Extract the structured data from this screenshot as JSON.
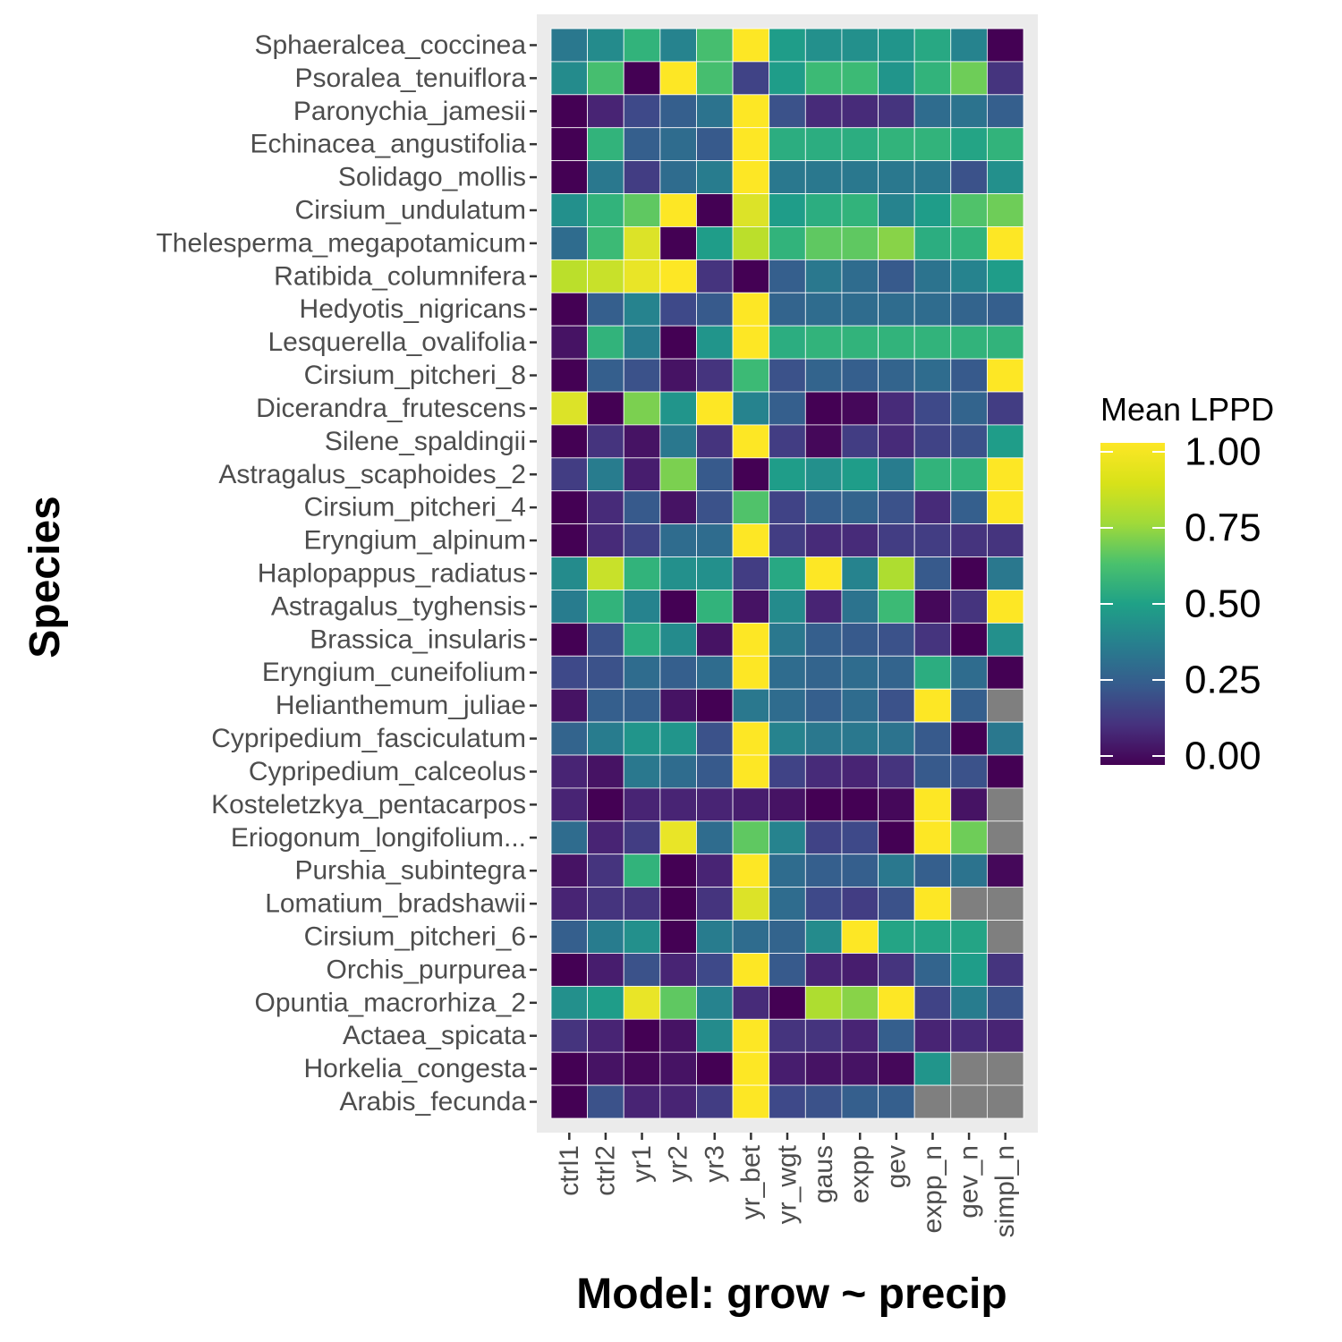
{
  "chart_data": {
    "type": "heatmap",
    "xlabel": "Model: grow ~ precip",
    "ylabel": "Species",
    "x_categories": [
      "ctrl1",
      "ctrl2",
      "yr1",
      "yr2",
      "yr3",
      "yr_bet",
      "yr_wgt",
      "gaus",
      "expp",
      "gev",
      "expp_n",
      "gev_n",
      "simpl_n"
    ],
    "y_categories": [
      "Sphaeralcea_coccinea",
      "Psoralea_tenuiflora",
      "Paronychia_jamesii",
      "Echinacea_angustifolia",
      "Solidago_mollis",
      "Cirsium_undulatum",
      "Thelesperma_megapotamicum",
      "Ratibida_columnifera",
      "Hedyotis_nigricans",
      "Lesquerella_ovalifolia",
      "Cirsium_pitcheri_8",
      "Dicerandra_frutescens",
      "Silene_spaldingii",
      "Astragalus_scaphoides_2",
      "Cirsium_pitcheri_4",
      "Eryngium_alpinum",
      "Haplopappus_radiatus",
      "Astragalus_tyghensis",
      "Brassica_insularis",
      "Eryngium_cuneifolium",
      "Helianthemum_juliae",
      "Cypripedium_fasciculatum",
      "Cypripedium_calceolus",
      "Kosteletzkya_pentacarpos",
      "Eriogonum_longifolium...",
      "Purshia_subintegra",
      "Lomatium_bradshawii",
      "Cirsium_pitcheri_6",
      "Orchis_purpurea",
      "Opuntia_macrorhiza_2",
      "Actaea_spicata",
      "Horkelia_congesta",
      "Arabis_fecunda"
    ],
    "values": [
      [
        0.4,
        0.48,
        0.65,
        0.45,
        0.7,
        1.0,
        0.55,
        0.5,
        0.5,
        0.52,
        0.6,
        0.45,
        0.0
      ],
      [
        0.48,
        0.7,
        0.0,
        1.0,
        0.7,
        0.2,
        0.55,
        0.68,
        0.68,
        0.52,
        0.65,
        0.78,
        0.15
      ],
      [
        0.0,
        0.1,
        0.22,
        0.3,
        0.38,
        1.0,
        0.25,
        0.12,
        0.12,
        0.15,
        0.35,
        0.38,
        0.3
      ],
      [
        0.0,
        0.65,
        0.3,
        0.35,
        0.28,
        1.0,
        0.62,
        0.62,
        0.62,
        0.65,
        0.65,
        0.58,
        0.65
      ],
      [
        0.0,
        0.4,
        0.18,
        0.35,
        0.42,
        1.0,
        0.4,
        0.4,
        0.4,
        0.4,
        0.4,
        0.25,
        0.5
      ],
      [
        0.5,
        0.65,
        0.75,
        1.0,
        0.0,
        0.95,
        0.55,
        0.62,
        0.65,
        0.45,
        0.55,
        0.72,
        0.78
      ],
      [
        0.35,
        0.68,
        0.95,
        0.0,
        0.55,
        0.9,
        0.65,
        0.75,
        0.75,
        0.82,
        0.62,
        0.65,
        1.0
      ],
      [
        0.9,
        0.92,
        0.97,
        1.0,
        0.15,
        0.0,
        0.3,
        0.4,
        0.35,
        0.28,
        0.38,
        0.45,
        0.55
      ],
      [
        0.0,
        0.3,
        0.45,
        0.22,
        0.28,
        1.0,
        0.32,
        0.35,
        0.35,
        0.35,
        0.35,
        0.32,
        0.3
      ],
      [
        0.05,
        0.65,
        0.42,
        0.0,
        0.52,
        1.0,
        0.62,
        0.65,
        0.65,
        0.65,
        0.65,
        0.65,
        0.65
      ],
      [
        0.0,
        0.3,
        0.25,
        0.05,
        0.15,
        0.68,
        0.25,
        0.32,
        0.3,
        0.32,
        0.35,
        0.28,
        1.0
      ],
      [
        0.95,
        0.0,
        0.8,
        0.52,
        1.0,
        0.45,
        0.3,
        0.0,
        0.02,
        0.12,
        0.22,
        0.32,
        0.18
      ],
      [
        0.0,
        0.15,
        0.05,
        0.4,
        0.15,
        1.0,
        0.18,
        0.02,
        0.18,
        0.12,
        0.2,
        0.25,
        0.55
      ],
      [
        0.18,
        0.42,
        0.08,
        0.8,
        0.28,
        0.0,
        0.55,
        0.5,
        0.55,
        0.42,
        0.65,
        0.65,
        1.0
      ],
      [
        0.0,
        0.12,
        0.28,
        0.05,
        0.25,
        0.72,
        0.2,
        0.3,
        0.32,
        0.25,
        0.12,
        0.3,
        1.0
      ],
      [
        0.0,
        0.12,
        0.2,
        0.35,
        0.35,
        1.0,
        0.18,
        0.12,
        0.12,
        0.18,
        0.18,
        0.15,
        0.15
      ],
      [
        0.48,
        0.92,
        0.65,
        0.5,
        0.5,
        0.18,
        0.6,
        1.0,
        0.45,
        0.88,
        0.28,
        0.0,
        0.4
      ],
      [
        0.42,
        0.65,
        0.45,
        0.0,
        0.65,
        0.05,
        0.48,
        0.1,
        0.38,
        0.68,
        0.02,
        0.15,
        1.0
      ],
      [
        0.0,
        0.25,
        0.62,
        0.48,
        0.05,
        1.0,
        0.4,
        0.3,
        0.28,
        0.25,
        0.15,
        0.0,
        0.5
      ],
      [
        0.22,
        0.25,
        0.35,
        0.3,
        0.35,
        1.0,
        0.35,
        0.32,
        0.35,
        0.32,
        0.62,
        0.35,
        0.0
      ],
      [
        0.05,
        0.3,
        0.3,
        0.05,
        0.0,
        0.4,
        0.35,
        0.3,
        0.35,
        0.25,
        1.0,
        0.3,
        null
      ],
      [
        0.32,
        0.42,
        0.52,
        0.52,
        0.25,
        1.0,
        0.45,
        0.4,
        0.4,
        0.38,
        0.28,
        0.0,
        0.4
      ],
      [
        0.1,
        0.05,
        0.4,
        0.35,
        0.28,
        1.0,
        0.2,
        0.12,
        0.1,
        0.15,
        0.28,
        0.25,
        0.0
      ],
      [
        0.1,
        0.0,
        0.1,
        0.1,
        0.1,
        0.08,
        0.05,
        0.0,
        0.0,
        0.02,
        1.0,
        0.05,
        null
      ],
      [
        0.35,
        0.1,
        0.18,
        0.97,
        0.35,
        0.75,
        0.45,
        0.2,
        0.22,
        0.0,
        1.0,
        0.78,
        null
      ],
      [
        0.05,
        0.15,
        0.65,
        0.0,
        0.1,
        1.0,
        0.35,
        0.3,
        0.3,
        0.4,
        0.3,
        0.38,
        0.02
      ],
      [
        0.1,
        0.15,
        0.15,
        0.0,
        0.15,
        0.95,
        0.35,
        0.22,
        0.18,
        0.25,
        1.0,
        null,
        null
      ],
      [
        0.3,
        0.42,
        0.5,
        0.0,
        0.42,
        0.35,
        0.32,
        0.48,
        1.0,
        0.58,
        0.58,
        0.58,
        null
      ],
      [
        0.0,
        0.08,
        0.25,
        0.1,
        0.22,
        1.0,
        0.28,
        0.1,
        0.08,
        0.15,
        0.32,
        0.55,
        0.15
      ],
      [
        0.5,
        0.55,
        0.97,
        0.75,
        0.45,
        0.12,
        0.0,
        0.88,
        0.82,
        1.0,
        0.2,
        0.42,
        0.25
      ],
      [
        0.15,
        0.1,
        0.0,
        0.05,
        0.48,
        1.0,
        0.15,
        0.15,
        0.1,
        0.3,
        0.1,
        0.12,
        0.1
      ],
      [
        0.0,
        0.05,
        0.02,
        0.05,
        0.0,
        1.0,
        0.08,
        0.05,
        0.05,
        0.02,
        0.52,
        null,
        null
      ],
      [
        0.0,
        0.25,
        0.1,
        0.1,
        0.18,
        1.0,
        0.22,
        0.25,
        0.3,
        0.3,
        null,
        null,
        null
      ]
    ],
    "missing_color": "#7f7f7f",
    "colorscale": "viridis",
    "legend": {
      "title": "Mean LPPD",
      "placement": "right",
      "ticks": [
        "1.00",
        "0.75",
        "0.50",
        "0.25",
        "0.00"
      ],
      "range": [
        0,
        1
      ]
    }
  }
}
